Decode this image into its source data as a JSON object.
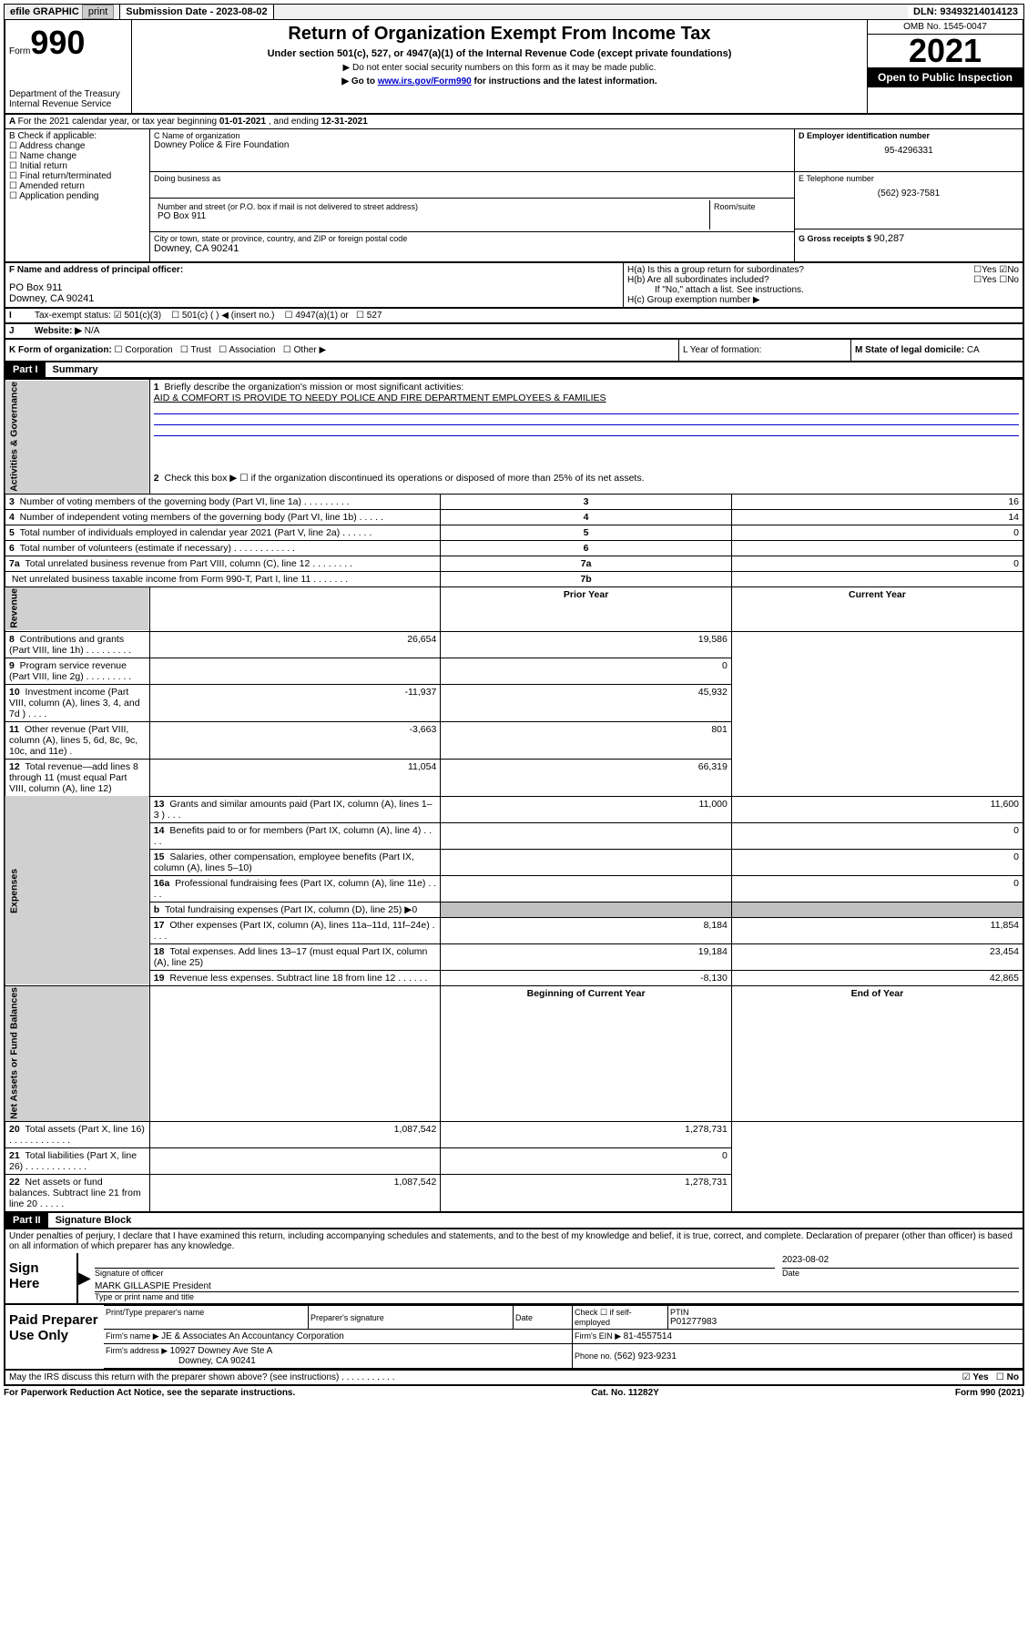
{
  "topbar": {
    "efile": "efile GRAPHIC",
    "print": "print",
    "submission_label": "Submission Date - ",
    "submission_date": "2023-08-02",
    "dln_label": "DLN: ",
    "dln": "93493214014123"
  },
  "header": {
    "form_word": "Form",
    "form_no": "990",
    "title": "Return of Organization Exempt From Income Tax",
    "subtitle": "Under section 501(c), 527, or 4947(a)(1) of the Internal Revenue Code (except private foundations)",
    "note1": "▶ Do not enter social security numbers on this form as it may be made public.",
    "note2_pre": "▶ Go to ",
    "note2_link": "www.irs.gov/Form990",
    "note2_post": " for instructions and the latest information.",
    "dept": "Department of the Treasury",
    "irs": "Internal Revenue Service",
    "omb": "OMB No. 1545-0047",
    "year": "2021",
    "open": "Open to Public Inspection"
  },
  "rowA": {
    "text_pre": "For the 2021 calendar year, or tax year beginning ",
    "begin": "01-01-2021",
    "mid": " , and ending ",
    "end": "12-31-2021"
  },
  "boxB": {
    "title": "B Check if applicable:",
    "items": [
      "Address change",
      "Name change",
      "Initial return",
      "Final return/terminated",
      "Amended return",
      "Application pending"
    ]
  },
  "boxC": {
    "name_label": "C Name of organization",
    "name": "Downey Police & Fire Foundation",
    "dba_label": "Doing business as",
    "addr_label": "Number and street (or P.O. box if mail is not delivered to street address)",
    "room_label": "Room/suite",
    "addr": "PO Box 911",
    "city_label": "City or town, state or province, country, and ZIP or foreign postal code",
    "city": "Downey, CA  90241"
  },
  "boxD": {
    "label": "D Employer identification number",
    "ein": "95-4296331"
  },
  "boxE": {
    "label": "E Telephone number",
    "phone": "(562) 923-7581"
  },
  "boxG": {
    "label": "G Gross receipts $ ",
    "amount": "90,287"
  },
  "boxF": {
    "label": "F Name and address of principal officer:",
    "line1": "PO Box 911",
    "line2": "Downey, CA  90241"
  },
  "boxH": {
    "ha": "H(a)  Is this a group return for subordinates?",
    "hb": "H(b)  Are all subordinates included?",
    "hb_note": "If \"No,\" attach a list. See instructions.",
    "hc": "H(c)  Group exemption number ▶",
    "yes": "Yes",
    "no": "No"
  },
  "boxI": {
    "label": "Tax-exempt status:",
    "o1": "501(c)(3)",
    "o2": "501(c) (   ) ◀ (insert no.)",
    "o3": "4947(a)(1) or",
    "o4": "527"
  },
  "boxJ": {
    "label": "Website: ▶",
    "val": "N/A"
  },
  "boxK": {
    "label": "K Form of organization:",
    "opts": [
      "Corporation",
      "Trust",
      "Association",
      "Other ▶"
    ]
  },
  "boxL": {
    "label": "L Year of formation:"
  },
  "boxM": {
    "label": "M State of legal domicile: ",
    "val": "CA"
  },
  "part1": {
    "hdr": "Part I",
    "title": "Summary",
    "q1_label": "Briefly describe the organization's mission or most significant activities:",
    "q1_val": "AID & COMFORT IS PROVIDE TO NEEDY POLICE AND FIRE DEPARTMENT EMPLOYEES & FAMILIES",
    "q2": "Check this box ▶ ☐  if the organization discontinued its operations or disposed of more than 25% of its net assets.",
    "rows_gov": [
      {
        "n": "3",
        "t": "Number of voting members of the governing body (Part VI, line 1a)   .    .    .    .    .    .    .    .    .",
        "k": "3",
        "v": "16"
      },
      {
        "n": "4",
        "t": "Number of independent voting members of the governing body (Part VI, line 1b)   .    .    .    .    .",
        "k": "4",
        "v": "14"
      },
      {
        "n": "5",
        "t": "Total number of individuals employed in calendar year 2021 (Part V, line 2a)   .    .    .    .    .    .",
        "k": "5",
        "v": "0"
      },
      {
        "n": "6",
        "t": "Total number of volunteers (estimate if necessary)   .    .    .    .    .    .    .    .    .    .    .    .",
        "k": "6",
        "v": ""
      },
      {
        "n": "7a",
        "t": "Total unrelated business revenue from Part VIII, column (C), line 12   .    .    .    .    .    .    .    .",
        "k": "7a",
        "v": "0"
      },
      {
        "n": "",
        "t": "Net unrelated business taxable income from Form 990-T, Part I, line 11   .    .    .    .    .    .    .",
        "k": "7b",
        "v": ""
      }
    ],
    "col_prior": "Prior Year",
    "col_current": "Current Year",
    "rows_rev": [
      {
        "n": "8",
        "t": "Contributions and grants (Part VIII, line 1h)   .    .    .    .    .    .    .    .    .",
        "p": "26,654",
        "c": "19,586"
      },
      {
        "n": "9",
        "t": "Program service revenue (Part VIII, line 2g)   .    .    .    .    .    .    .    .    .",
        "p": "",
        "c": "0"
      },
      {
        "n": "10",
        "t": "Investment income (Part VIII, column (A), lines 3, 4, and 7d )   .    .    .    .",
        "p": "-11,937",
        "c": "45,932"
      },
      {
        "n": "11",
        "t": "Other revenue (Part VIII, column (A), lines 5, 6d, 8c, 9c, 10c, and 11e)   .",
        "p": "-3,663",
        "c": "801"
      },
      {
        "n": "12",
        "t": "Total revenue—add lines 8 through 11 (must equal Part VIII, column (A), line 12)",
        "p": "11,054",
        "c": "66,319"
      }
    ],
    "rows_exp": [
      {
        "n": "13",
        "t": "Grants and similar amounts paid (Part IX, column (A), lines 1–3 )   .    .    .",
        "p": "11,000",
        "c": "11,600"
      },
      {
        "n": "14",
        "t": "Benefits paid to or for members (Part IX, column (A), line 4)   .    .    .    .",
        "p": "",
        "c": "0"
      },
      {
        "n": "15",
        "t": "Salaries, other compensation, employee benefits (Part IX, column (A), lines 5–10)",
        "p": "",
        "c": "0"
      },
      {
        "n": "16a",
        "t": "Professional fundraising fees (Part IX, column (A), line 11e)   .    .    .    .",
        "p": "",
        "c": "0"
      },
      {
        "n": "b",
        "t": "Total fundraising expenses (Part IX, column (D), line 25) ▶0",
        "p": "SHADE",
        "c": "SHADE"
      },
      {
        "n": "17",
        "t": "Other expenses (Part IX, column (A), lines 11a–11d, 11f–24e)   .    .    .    .",
        "p": "8,184",
        "c": "11,854"
      },
      {
        "n": "18",
        "t": "Total expenses. Add lines 13–17 (must equal Part IX, column (A), line 25)",
        "p": "19,184",
        "c": "23,454"
      },
      {
        "n": "19",
        "t": "Revenue less expenses. Subtract line 18 from line 12   .    .    .    .    .    .",
        "p": "-8,130",
        "c": "42,865"
      }
    ],
    "col_begin": "Beginning of Current Year",
    "col_end": "End of Year",
    "rows_net": [
      {
        "n": "20",
        "t": "Total assets (Part X, line 16)   .    .    .    .    .    .    .    .    .    .    .    .",
        "p": "1,087,542",
        "c": "1,278,731"
      },
      {
        "n": "21",
        "t": "Total liabilities (Part X, line 26)   .    .    .    .    .    .    .    .    .    .    .    .",
        "p": "",
        "c": "0"
      },
      {
        "n": "22",
        "t": "Net assets or fund balances. Subtract line 21 from line 20   .    .    .    .    .",
        "p": "1,087,542",
        "c": "1,278,731"
      }
    ],
    "vlabels": {
      "gov": "Activities & Governance",
      "rev": "Revenue",
      "exp": "Expenses",
      "net": "Net Assets or Fund Balances"
    }
  },
  "part2": {
    "hdr": "Part II",
    "title": "Signature Block",
    "decl": "Under penalties of perjury, I declare that I have examined this return, including accompanying schedules and statements, and to the best of my knowledge and belief, it is true, correct, and complete. Declaration of preparer (other than officer) is based on all information of which preparer has any knowledge."
  },
  "sign": {
    "label": "Sign Here",
    "sig_officer": "Signature of officer",
    "date_label": "Date",
    "date": "2023-08-02",
    "name": "MARK GILLASPIE  President",
    "name_label": "Type or print name and title"
  },
  "paid": {
    "label": "Paid Preparer Use Only",
    "col1": "Print/Type preparer's name",
    "col2": "Preparer's signature",
    "col3": "Date",
    "col4_a": "Check ☐ if self-employed",
    "col5_label": "PTIN",
    "col5": "P01277983",
    "firm_name_label": "Firm's name     ▶ ",
    "firm_name": "JE & Associates An Accountancy Corporation",
    "firm_ein_label": "Firm's EIN ▶ ",
    "firm_ein": "81-4557514",
    "firm_addr_label": "Firm's address ▶ ",
    "firm_addr1": "10927 Downey Ave Ste A",
    "firm_addr2": "Downey, CA  90241",
    "phone_label": "Phone no. ",
    "phone": "(562) 923-9231"
  },
  "discuss": {
    "text": "May the IRS discuss this return with the preparer shown above? (see instructions)   .    .    .    .    .    .    .    .    .    .    .",
    "yes": "Yes",
    "no": "No"
  },
  "footer": {
    "left": "For Paperwork Reduction Act Notice, see the separate instructions.",
    "mid": "Cat. No. 11282Y",
    "right": "Form 990 (2021)"
  }
}
